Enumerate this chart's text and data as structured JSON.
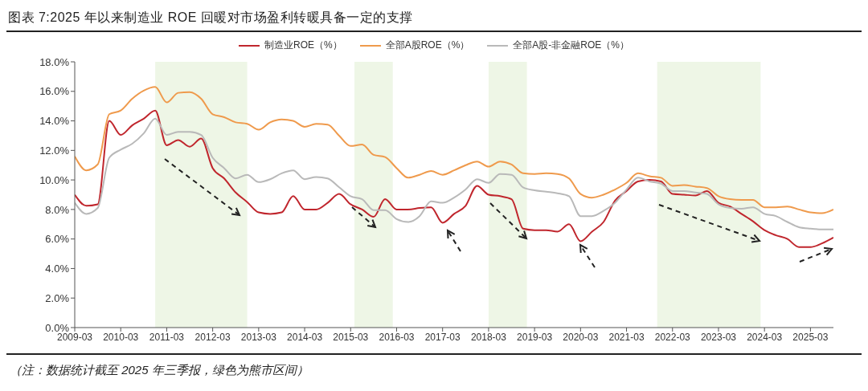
{
  "chart_data": {
    "type": "line",
    "title": "图表 7:2025 年以来制造业 ROE 回暖对市场盈利转暖具备一定的支撑",
    "annotations": [
      "（注：数据统计截至 2025 年三季报，绿色为熊市区间）"
    ],
    "x": [
      "2009-03",
      "2009-06",
      "2009-09",
      "2009-12",
      "2010-03",
      "2010-06",
      "2010-09",
      "2010-12",
      "2011-03",
      "2011-06",
      "2011-09",
      "2011-12",
      "2012-03",
      "2012-06",
      "2012-09",
      "2012-12",
      "2013-03",
      "2013-06",
      "2013-09",
      "2013-12",
      "2014-03",
      "2014-06",
      "2014-09",
      "2014-12",
      "2015-03",
      "2015-06",
      "2015-09",
      "2015-12",
      "2016-03",
      "2016-06",
      "2016-09",
      "2016-12",
      "2017-03",
      "2017-06",
      "2017-09",
      "2017-12",
      "2018-03",
      "2018-06",
      "2018-09",
      "2018-12",
      "2019-03",
      "2019-06",
      "2019-09",
      "2019-12",
      "2020-03",
      "2020-06",
      "2020-09",
      "2020-12",
      "2021-03",
      "2021-06",
      "2021-09",
      "2021-12",
      "2022-03",
      "2022-06",
      "2022-09",
      "2022-12",
      "2023-03",
      "2023-06",
      "2023-09",
      "2023-12",
      "2024-03",
      "2024-06",
      "2024-09",
      "2024-12",
      "2025-03",
      "2025-06",
      "2025-09"
    ],
    "series": [
      {
        "name": "制造业ROE（%）",
        "color": "#c0262d",
        "values": [
          9.0,
          8.25,
          8.35,
          14.0,
          13.05,
          13.7,
          14.15,
          14.7,
          12.35,
          12.7,
          12.25,
          12.8,
          10.8,
          10.1,
          9.15,
          8.5,
          7.8,
          7.7,
          7.8,
          8.9,
          8.0,
          8.0,
          8.45,
          9.05,
          8.35,
          8.0,
          7.5,
          8.7,
          8.0,
          8.0,
          8.1,
          8.15,
          7.1,
          7.7,
          8.25,
          9.6,
          9.0,
          8.9,
          8.7,
          6.7,
          6.6,
          6.6,
          6.5,
          7.0,
          5.85,
          6.5,
          7.15,
          8.6,
          9.25,
          9.9,
          10.0,
          9.9,
          9.05,
          9.0,
          8.95,
          9.25,
          8.45,
          8.2,
          7.7,
          7.2,
          6.6,
          6.25,
          6.0,
          5.45,
          5.45,
          5.7,
          6.1
        ]
      },
      {
        "name": "全部A股ROE（%）",
        "color": "#ef9a4c",
        "values": [
          11.6,
          10.65,
          11.05,
          14.45,
          14.7,
          15.5,
          16.05,
          16.3,
          15.25,
          15.9,
          15.95,
          15.5,
          14.45,
          14.25,
          13.9,
          13.8,
          13.4,
          13.9,
          14.1,
          14.0,
          13.6,
          13.8,
          13.75,
          13.0,
          12.3,
          12.4,
          11.7,
          11.55,
          10.8,
          10.15,
          10.35,
          10.6,
          10.35,
          10.65,
          11.0,
          11.25,
          10.9,
          11.25,
          11.05,
          10.45,
          10.4,
          10.45,
          10.4,
          10.1,
          9.05,
          8.8,
          9.0,
          9.35,
          9.8,
          10.45,
          10.25,
          10.15,
          9.6,
          9.65,
          9.55,
          9.45,
          8.9,
          8.7,
          8.65,
          8.65,
          8.15,
          8.15,
          8.2,
          8.0,
          7.8,
          7.75,
          8.0
        ]
      },
      {
        "name": "全部A股-非金融ROE（%）",
        "color": "#b9b9b9",
        "values": [
          8.45,
          7.7,
          8.1,
          11.5,
          12.05,
          12.45,
          13.15,
          14.15,
          13.05,
          13.25,
          13.25,
          13.05,
          11.5,
          10.8,
          10.1,
          10.35,
          9.85,
          10.05,
          10.45,
          10.65,
          10.05,
          10.2,
          10.1,
          9.5,
          8.9,
          8.7,
          7.95,
          7.95,
          7.35,
          7.15,
          7.55,
          8.55,
          8.45,
          8.8,
          9.35,
          10.05,
          9.8,
          10.4,
          10.35,
          9.5,
          9.3,
          9.2,
          9.1,
          8.9,
          7.55,
          7.55,
          7.9,
          8.45,
          9.35,
          10.15,
          9.9,
          9.75,
          9.25,
          9.25,
          9.15,
          9.05,
          8.35,
          8.1,
          8.05,
          8.15,
          7.7,
          7.55,
          7.15,
          6.8,
          6.7,
          6.65,
          6.65
        ]
      }
    ],
    "xlim": [
      "2009-03",
      "2025-09"
    ],
    "xticks": [
      "2009-03",
      "2010-03",
      "2011-03",
      "2012-03",
      "2013-03",
      "2014-03",
      "2015-03",
      "2016-03",
      "2017-03",
      "2018-03",
      "2019-03",
      "2020-03",
      "2021-03",
      "2022-03",
      "2023-03",
      "2024-03",
      "2025-03"
    ],
    "ylim": [
      0,
      18
    ],
    "yticks": [
      {
        "value": 0,
        "label": "0.0%"
      },
      {
        "value": 2,
        "label": "2.0%"
      },
      {
        "value": 4,
        "label": "4.0%"
      },
      {
        "value": 6,
        "label": "6.0%"
      },
      {
        "value": 8,
        "label": "8.0%"
      },
      {
        "value": 10,
        "label": "10.0%"
      },
      {
        "value": 12,
        "label": "12.0%"
      },
      {
        "value": 14,
        "label": "14.0%"
      },
      {
        "value": 16,
        "label": "16.0%"
      },
      {
        "value": 18,
        "label": "18.0%"
      }
    ],
    "bands": [
      {
        "axis": "x",
        "from": "2010-12",
        "to": "2012-12",
        "color": "#eef6e6"
      },
      {
        "axis": "x",
        "from": "2015-04",
        "to": "2016-02",
        "color": "#eef6e6"
      },
      {
        "axis": "x",
        "from": "2018-03",
        "to": "2019-01",
        "color": "#eef6e6"
      },
      {
        "axis": "x",
        "from": "2021-11",
        "to": "2024-02",
        "color": "#eef6e6"
      }
    ],
    "grid": false,
    "legend": "top",
    "marker": "none",
    "line_style": "solid"
  }
}
